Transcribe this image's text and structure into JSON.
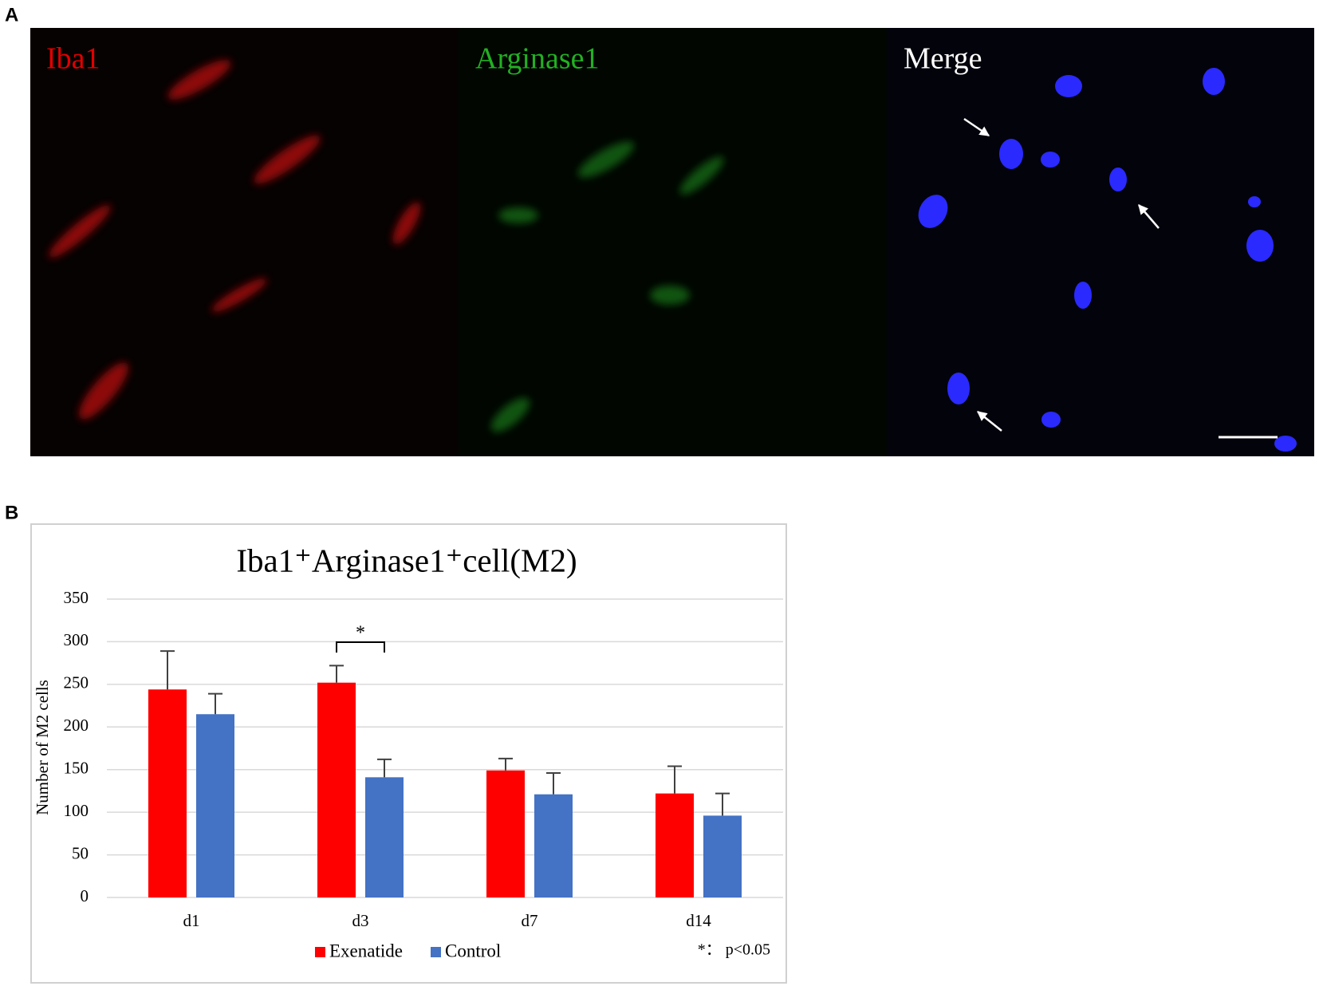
{
  "figure": {
    "panel_a": "A",
    "panel_b": "B",
    "image_labels": [
      "Iba1",
      "Arginase1",
      "Merge"
    ]
  },
  "chart_data": {
    "type": "bar",
    "title": "Iba1⁺Arginase1⁺cell(M2)",
    "y_label": "Number of M2 cells",
    "categories": [
      "d1",
      "d3",
      "d7",
      "d14"
    ],
    "series": [
      {
        "name": "Exenatide",
        "color": "#ff0000",
        "values": [
          244,
          252,
          149,
          122
        ],
        "errors": [
          45,
          20,
          14,
          32
        ]
      },
      {
        "name": "Control",
        "color": "#4472c4",
        "values": [
          215,
          141,
          121,
          96
        ],
        "errors": [
          24,
          21,
          25,
          26
        ]
      }
    ],
    "ylim": [
      0,
      350
    ],
    "yticks": [
      0,
      50,
      100,
      150,
      200,
      250,
      300,
      350
    ],
    "grid": true,
    "annotations": [
      "*",
      "*： p<0.05"
    ]
  }
}
